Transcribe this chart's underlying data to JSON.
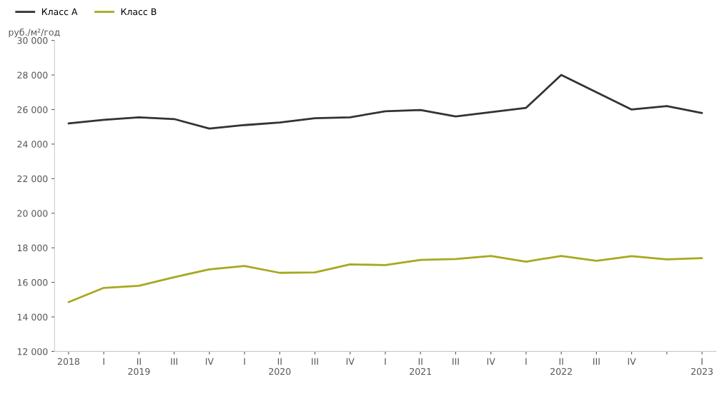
{
  "chart_data": {
    "type": "line",
    "ylabel": "руб./м²/год",
    "categories": [
      "2018",
      "I",
      "II\n2019",
      "III",
      "IV",
      "I",
      "II\n2020",
      "III",
      "IV",
      "I",
      "II\n2021",
      "III",
      "IV",
      "I",
      "II\n2022",
      "III",
      "IV",
      null,
      "I\n2023"
    ],
    "series": [
      {
        "name": "Класс А",
        "color": "#333333",
        "values": [
          25200,
          25400,
          25550,
          25450,
          24900,
          25100,
          25250,
          25500,
          25550,
          25900,
          25970,
          25600,
          25850,
          26100,
          28000,
          27000,
          26000,
          26200,
          25800
        ]
      },
      {
        "name": "Класс В",
        "color": "#a8a820",
        "values": [
          14860,
          15680,
          15800,
          16300,
          16750,
          16950,
          16550,
          16580,
          17040,
          17000,
          17300,
          17350,
          17530,
          17200,
          17530,
          17250,
          17520,
          17330,
          17400
        ]
      }
    ],
    "ylim": [
      12000,
      30000
    ],
    "yticks": [
      {
        "value": 12000,
        "label": "12 000"
      },
      {
        "value": 14000,
        "label": "14 000"
      },
      {
        "value": 16000,
        "label": "16 000"
      },
      {
        "value": 18000,
        "label": "18 000"
      },
      {
        "value": 20000,
        "label": "20 000"
      },
      {
        "value": 22000,
        "label": "22 000"
      },
      {
        "value": 24000,
        "label": "24 000"
      },
      {
        "value": 26000,
        "label": "26 000"
      },
      {
        "value": 28000,
        "label": "28 000"
      },
      {
        "value": 30000,
        "label": "30 000"
      }
    ],
    "legend": "top left",
    "grid": false,
    "marker": "none",
    "line_style": "solid"
  }
}
